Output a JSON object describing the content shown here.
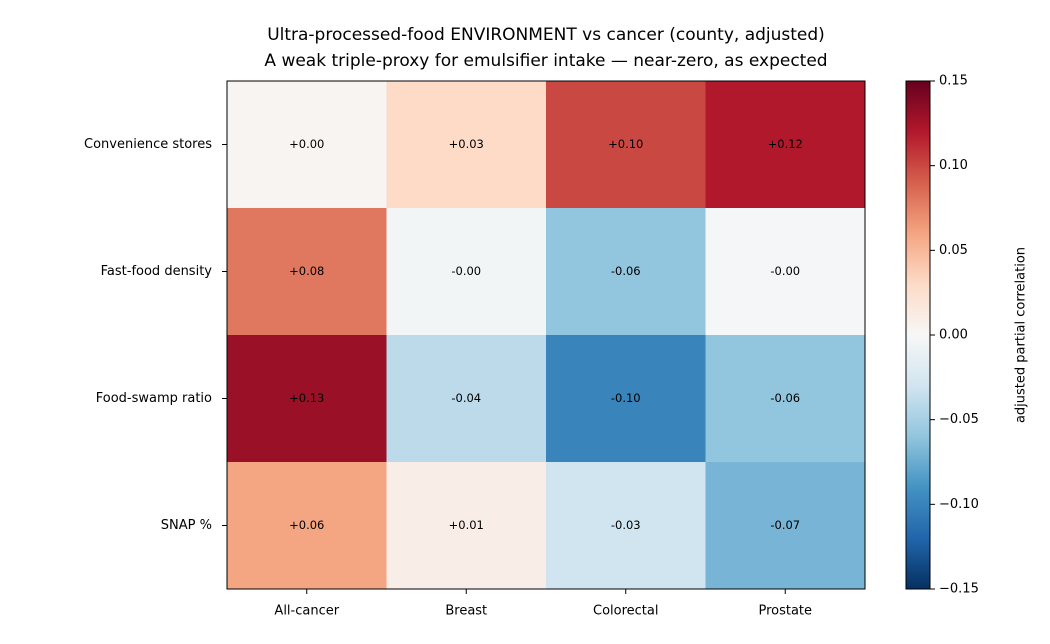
{
  "chart_data": {
    "type": "heatmap",
    "title": "Ultra-processed-food ENVIRONMENT vs cancer (county, adjusted)",
    "subtitle": "A weak triple-proxy for emulsifier intake — near-zero, as expected",
    "x_categories": [
      "All-cancer",
      "Breast",
      "Colorectal",
      "Prostate"
    ],
    "y_categories": [
      "Convenience stores",
      "Fast-food density",
      "Food-swamp ratio",
      "SNAP %"
    ],
    "values": [
      [
        0.003,
        0.03,
        0.1,
        0.12
      ],
      [
        0.08,
        -0.004,
        -0.06,
        -0.002
      ],
      [
        0.13,
        -0.04,
        -0.1,
        -0.06
      ],
      [
        0.06,
        0.01,
        -0.03,
        -0.07
      ]
    ],
    "value_labels": [
      [
        "+0.00",
        "+0.03",
        "+0.10",
        "+0.12"
      ],
      [
        "+0.08",
        "-0.00",
        "-0.06",
        "-0.00"
      ],
      [
        "+0.13",
        "-0.04",
        "-0.10",
        "-0.06"
      ],
      [
        "+0.06",
        "+0.01",
        "-0.03",
        "-0.07"
      ]
    ],
    "colormap": [
      "#053061",
      "#2166ac",
      "#4393c3",
      "#92c5de",
      "#d1e5f0",
      "#f7f7f7",
      "#fddbc7",
      "#f4a582",
      "#d6604d",
      "#b2182b",
      "#67001f"
    ],
    "clim": [
      -0.15,
      0.15
    ],
    "cticks": [
      {
        "value": -0.15,
        "label": "−0.15"
      },
      {
        "value": -0.1,
        "label": "−0.10"
      },
      {
        "value": -0.05,
        "label": "−0.05"
      },
      {
        "value": 0.0,
        "label": "0.00"
      },
      0.05,
      {
        "value": 0.1,
        "label": "0.10"
      },
      0.15
    ],
    "colorbar_label": "adjusted partial correlation"
  }
}
